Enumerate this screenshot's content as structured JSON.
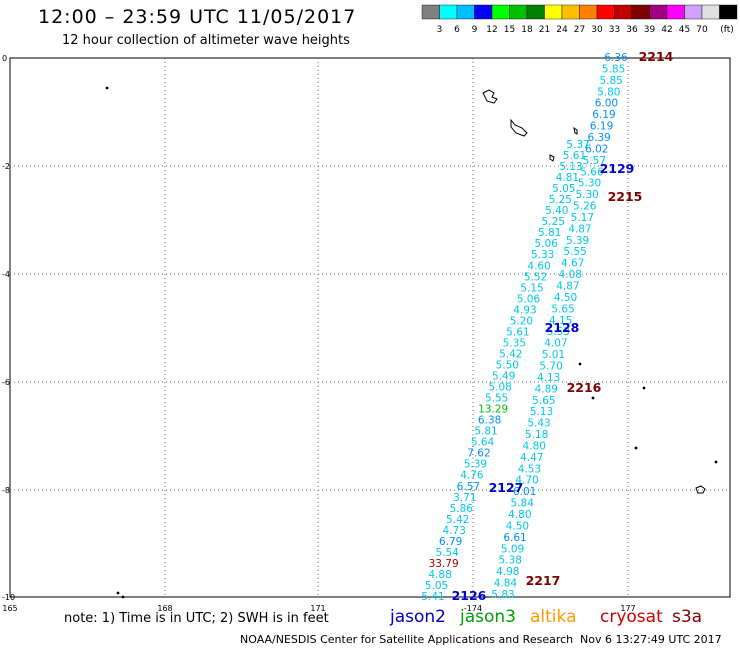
{
  "header": {
    "title": "12:00 – 23:59 UTC 11/05/2017",
    "subtitle": "12 hour collection of altimeter wave heights"
  },
  "colorbar": {
    "colors": [
      "#808080",
      "#00ffff",
      "#00bfff",
      "#0000ff",
      "#00ff00",
      "#00c000",
      "#008000",
      "#ffff00",
      "#ffbf00",
      "#ff8000",
      "#ff0000",
      "#c00000",
      "#800000",
      "#a00080",
      "#ff00ff",
      "#d0a0ff",
      "#e0e0e0",
      "#000000"
    ],
    "labels": [
      "3",
      "6",
      "9",
      "12",
      "15",
      "18",
      "21",
      "24",
      "27",
      "30",
      "33",
      "36",
      "39",
      "42",
      "45",
      "70",
      "(ft)"
    ]
  },
  "axes": {
    "lat_labels": [
      "0",
      "-2",
      "-4",
      "-6",
      "-8",
      "-10"
    ],
    "lon_labels": [
      "165",
      "168",
      "171",
      "-174",
      "177"
    ]
  },
  "pass_labels": [
    {
      "text": "2214",
      "color": "#800000"
    },
    {
      "text": "2129",
      "color": "#0000cc"
    },
    {
      "text": "2215",
      "color": "#800000"
    },
    {
      "text": "2128",
      "color": "#0000cc"
    },
    {
      "text": "2216",
      "color": "#800000"
    },
    {
      "text": "2127",
      "color": "#0000cc"
    },
    {
      "text": "2217",
      "color": "#800000"
    },
    {
      "text": "2126",
      "color": "#0000cc"
    }
  ],
  "tracks": {
    "track_a": [
      "6.36",
      "5.85",
      "5.85",
      "5.80",
      "6.00",
      "6.19",
      "6.19",
      "6.39",
      "6.02",
      "5.57",
      "5.66",
      "5.30",
      "5.30",
      "5.26",
      "5.17",
      "4.87",
      "5.39",
      "5.55",
      "4.67",
      "4.08",
      "4.87",
      "4.50",
      "5.65",
      "4.15",
      "5.53",
      "4.07",
      "5.01",
      "5.70",
      "4.13",
      "4.89",
      "5.65",
      "5.13",
      "5.43",
      "5.18",
      "4.80",
      "4.47",
      "4.53",
      "4.70",
      "6.01",
      "5.84",
      "4.80",
      "4.50",
      "6.61",
      "5.09",
      "5.38",
      "4.98",
      "4.84",
      "5.83"
    ],
    "track_b": [
      "5.37",
      "5.61",
      "5.13",
      "4.81",
      "5.05",
      "5.25",
      "5.40",
      "5.25",
      "5.81",
      "5.06",
      "5.33",
      "4.60",
      "5.52",
      "5.15",
      "5.06",
      "4.93",
      "5.20",
      "5.61",
      "5.35",
      "5.42",
      "5.50",
      "5.49",
      "5.08",
      "5.55",
      "13.29",
      "6.38",
      "5.81",
      "5.64",
      "7.62",
      "5.39",
      "4.76",
      "6.57",
      "3.71",
      "5.86",
      "5.42",
      "4.73",
      "6.79",
      "5.54",
      "33.79",
      "4.88",
      "5.05",
      "5.41"
    ]
  },
  "footer": {
    "note": "note: 1) Time is in UTC; 2) SWH is in feet",
    "legend": [
      {
        "text": "jason2",
        "color": "#0000cc"
      },
      {
        "text": "jason3",
        "color": "#00a000"
      },
      {
        "text": "altika",
        "color": "#ff9900"
      },
      {
        "text": "cryosat",
        "color": "#cc0000"
      },
      {
        "text": "s3a",
        "color": "#800000"
      }
    ],
    "credit": "NOAA/NESDIS Center for Satellite Applications and Research",
    "timestamp": "Nov  6 13:27:49 UTC 2017"
  }
}
